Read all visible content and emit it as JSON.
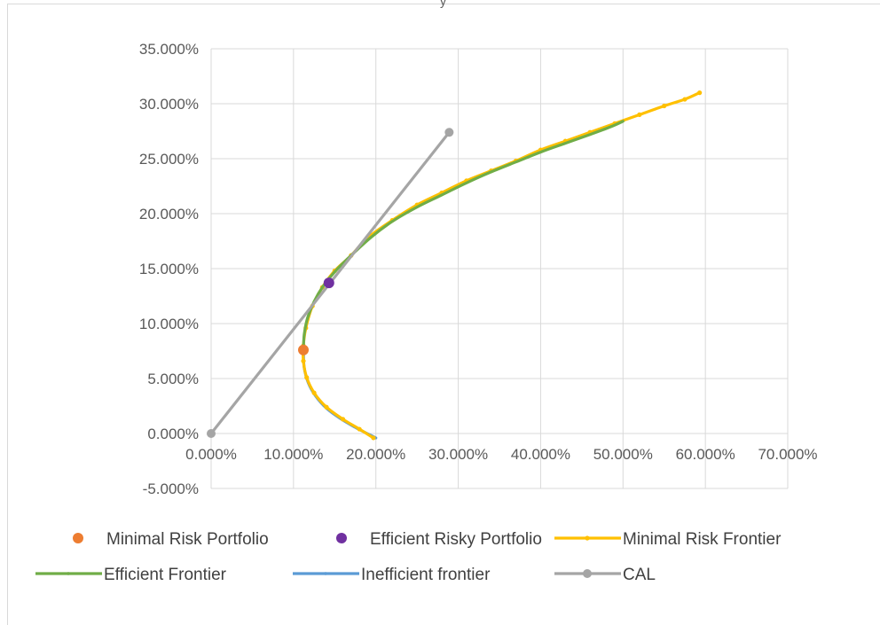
{
  "chart_data": {
    "type": "scatter",
    "title": "",
    "xlabel": "",
    "ylabel": "",
    "xlim": [
      0,
      70
    ],
    "ylim": [
      -5,
      35
    ],
    "x_ticks": [
      0,
      10,
      20,
      30,
      40,
      50,
      60,
      70
    ],
    "y_ticks": [
      -5,
      0,
      5,
      10,
      15,
      20,
      25,
      30,
      35
    ],
    "x_tick_labels": [
      "0.000%",
      "10.000%",
      "20.000%",
      "30.000%",
      "40.000%",
      "50.000%",
      "60.000%",
      "70.000%"
    ],
    "y_tick_labels": [
      "-5.000%",
      "0.000%",
      "5.000%",
      "10.000%",
      "15.000%",
      "20.000%",
      "25.000%",
      "30.000%",
      "35.000%"
    ],
    "grid": true,
    "legend_position": "bottom",
    "series": [
      {
        "name": "Minimal Risk Portfolio",
        "kind": "marker",
        "color": "#ed7d31",
        "points": [
          [
            11.2,
            7.6
          ]
        ]
      },
      {
        "name": "Efficient Risky Portfolio",
        "kind": "marker",
        "color": "#7030a0",
        "points": [
          [
            14.3,
            13.7
          ]
        ]
      },
      {
        "name": "Minimal Risk Frontier",
        "kind": "line-dotted",
        "color": "#ffc000",
        "points": [
          [
            19.7,
            -0.4
          ],
          [
            18.0,
            0.4
          ],
          [
            16.0,
            1.3
          ],
          [
            14.0,
            2.4
          ],
          [
            12.5,
            3.7
          ],
          [
            11.6,
            5.1
          ],
          [
            11.2,
            6.6
          ],
          [
            11.2,
            8.0
          ],
          [
            11.5,
            9.6
          ],
          [
            12.3,
            11.6
          ],
          [
            13.5,
            13.3
          ],
          [
            15.0,
            14.8
          ],
          [
            17.0,
            16.2
          ],
          [
            19.0,
            17.8
          ],
          [
            22.0,
            19.4
          ],
          [
            25.0,
            20.8
          ],
          [
            28.0,
            21.9
          ],
          [
            31.0,
            23.0
          ],
          [
            34.0,
            23.9
          ],
          [
            37.0,
            24.8
          ],
          [
            40.0,
            25.8
          ],
          [
            43.0,
            26.6
          ],
          [
            46.0,
            27.4
          ],
          [
            49.0,
            28.2
          ],
          [
            52.0,
            29.0
          ],
          [
            55.0,
            29.8
          ],
          [
            57.5,
            30.4
          ],
          [
            59.3,
            31.0
          ]
        ]
      },
      {
        "name": "Efficient Frontier",
        "kind": "line",
        "color": "#70ad47",
        "points": [
          [
            11.2,
            7.6
          ],
          [
            11.3,
            9.0
          ],
          [
            11.7,
            10.5
          ],
          [
            12.5,
            12.0
          ],
          [
            13.6,
            13.4
          ],
          [
            15.0,
            14.7
          ],
          [
            17.0,
            16.2
          ],
          [
            19.5,
            17.9
          ],
          [
            22.0,
            19.3
          ],
          [
            25.0,
            20.6
          ],
          [
            28.0,
            21.7
          ],
          [
            31.0,
            22.8
          ],
          [
            34.0,
            23.8
          ],
          [
            37.0,
            24.7
          ],
          [
            40.0,
            25.6
          ],
          [
            43.0,
            26.4
          ],
          [
            46.0,
            27.2
          ],
          [
            48.5,
            27.9
          ],
          [
            50.0,
            28.4
          ]
        ]
      },
      {
        "name": "Inefficient frontier",
        "kind": "line",
        "color": "#5b9bd5",
        "points": [
          [
            11.2,
            7.6
          ],
          [
            11.3,
            6.0
          ],
          [
            11.8,
            4.6
          ],
          [
            12.7,
            3.4
          ],
          [
            14.0,
            2.3
          ],
          [
            15.6,
            1.4
          ],
          [
            17.4,
            0.6
          ],
          [
            20.0,
            -0.4
          ]
        ]
      },
      {
        "name": "CAL",
        "kind": "line-marker-ends",
        "color": "#a5a5a5",
        "points": [
          [
            0,
            0
          ],
          [
            28.9,
            27.4
          ]
        ]
      }
    ]
  },
  "page": {
    "top_fragment": "y"
  }
}
